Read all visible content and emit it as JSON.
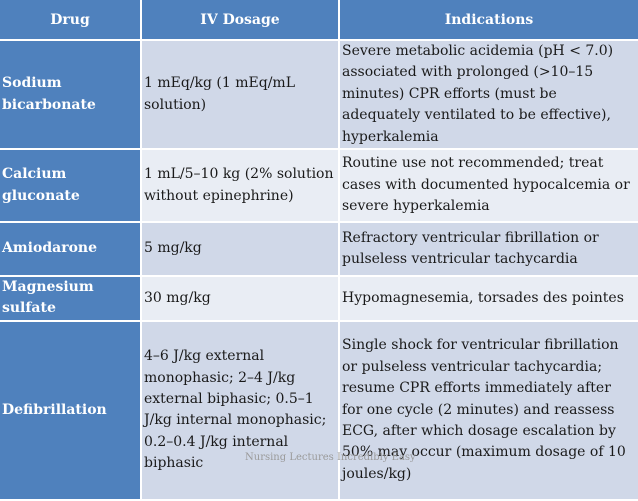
{
  "headers": [
    "Drug",
    "IV Dosage",
    "Indications"
  ],
  "rows": [
    {
      "drug": "Sodium bicarbonate",
      "dosage": "1 mEq/kg (1 mEq/mL solution)",
      "indications": "Severe metabolic acidemia (pH < 7.0) associated with prolonged (>10–15 minutes) CPR efforts (must be adequately ventilated to be effective), hyperkalemia"
    },
    {
      "drug": "Calcium gluconate",
      "dosage": "1 mL/5–10 kg (2% solution without epinephrine)",
      "indications": "Routine use not recommended; treat cases with documented hypocalcemia or severe hyperkalemia"
    },
    {
      "drug": "Amiodarone",
      "dosage": "5 mg/kg",
      "indications": "Refractory ventricular fibrillation or pulseless ventricular tachycardia"
    },
    {
      "drug": "Magnesium sulfate",
      "dosage": "30 mg/kg",
      "indications": "Hypomagnesemia, torsades des pointes"
    },
    {
      "drug": "Defibrillation",
      "dosage": "4–6 J/kg external monophasic; 2–4 J/kg external biphasic; 0.5–1 J/kg internal monophasic; 0.2–0.4 J/kg internal biphasic",
      "indications": "Single shock for ventricular fibrillation or pulseless ventricular tachycardia; resume CPR efforts immediately after for one cycle (2 minutes) and reassess ECG, after which dosage escalation by 50% may occur (maximum dosage of 10 joules/kg)"
    }
  ],
  "watermark": "Nursing Lectures Incredibly Easy"
}
